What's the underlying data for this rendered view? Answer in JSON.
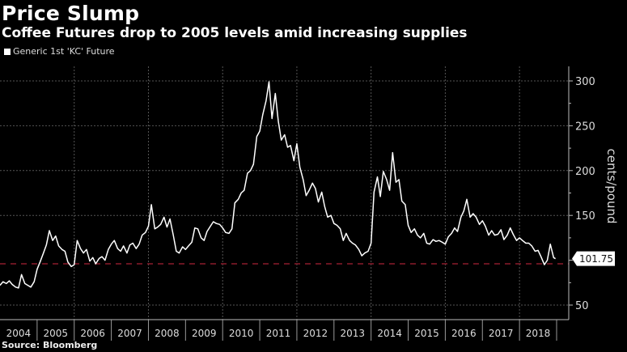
{
  "header": {
    "title": "Price Slump",
    "subtitle": "Coffee Futures drop to 2005 levels amid increasing supplies"
  },
  "legend": {
    "label": "Generic 1st 'KC' Future"
  },
  "footer": {
    "source": "Source: Bloomberg"
  },
  "colors": {
    "background": "#000000",
    "line": "#ffffff",
    "reference": "#8b1a2a",
    "grid": "#555555"
  },
  "chart_data": {
    "type": "line",
    "title": "Price Slump",
    "subtitle": "Coffee Futures drop to 2005 levels amid increasing supplies",
    "ylabel": "cents/pound",
    "xlabel": "",
    "ylim": [
      40,
      320
    ],
    "xlim": [
      2004.0,
      2019.0
    ],
    "yticks": [
      50,
      150,
      200,
      250,
      300
    ],
    "ytick_labels": [
      "50",
      "150",
      "200",
      "250",
      "300"
    ],
    "xtick_labels": [
      "2004",
      "2005",
      "2006",
      "2007",
      "2008",
      "2009",
      "2010",
      "2011",
      "2012",
      "2013",
      "2014",
      "2015",
      "2016",
      "2017",
      "2018"
    ],
    "grid": true,
    "legend_position": "top-left",
    "last_value": 101.75,
    "last_value_label": "101.75",
    "reference_line": {
      "value": 96,
      "style": "dashed"
    },
    "series": [
      {
        "name": "Generic 1st 'KC' Future",
        "x": [
          2004.0,
          2004.08,
          2004.17,
          2004.25,
          2004.33,
          2004.42,
          2004.5,
          2004.58,
          2004.67,
          2004.75,
          2004.83,
          2004.92,
          2005.0,
          2005.08,
          2005.17,
          2005.25,
          2005.33,
          2005.42,
          2005.5,
          2005.58,
          2005.67,
          2005.75,
          2005.83,
          2005.92,
          2006.0,
          2006.08,
          2006.17,
          2006.25,
          2006.33,
          2006.42,
          2006.5,
          2006.58,
          2006.67,
          2006.75,
          2006.83,
          2006.92,
          2007.0,
          2007.08,
          2007.17,
          2007.25,
          2007.33,
          2007.42,
          2007.5,
          2007.58,
          2007.67,
          2007.75,
          2007.83,
          2007.92,
          2008.0,
          2008.08,
          2008.17,
          2008.25,
          2008.33,
          2008.42,
          2008.5,
          2008.58,
          2008.67,
          2008.75,
          2008.83,
          2008.92,
          2009.0,
          2009.08,
          2009.17,
          2009.25,
          2009.33,
          2009.42,
          2009.5,
          2009.58,
          2009.67,
          2009.75,
          2009.83,
          2009.92,
          2010.0,
          2010.08,
          2010.17,
          2010.25,
          2010.33,
          2010.42,
          2010.5,
          2010.58,
          2010.67,
          2010.75,
          2010.83,
          2010.92,
          2011.0,
          2011.08,
          2011.17,
          2011.25,
          2011.33,
          2011.42,
          2011.5,
          2011.58,
          2011.67,
          2011.75,
          2011.83,
          2011.92,
          2012.0,
          2012.08,
          2012.17,
          2012.25,
          2012.33,
          2012.42,
          2012.5,
          2012.58,
          2012.67,
          2012.75,
          2012.83,
          2012.92,
          2013.0,
          2013.08,
          2013.17,
          2013.25,
          2013.33,
          2013.42,
          2013.5,
          2013.58,
          2013.67,
          2013.75,
          2013.83,
          2013.92,
          2014.0,
          2014.08,
          2014.17,
          2014.25,
          2014.33,
          2014.42,
          2014.5,
          2014.58,
          2014.67,
          2014.75,
          2014.83,
          2014.92,
          2015.0,
          2015.08,
          2015.17,
          2015.25,
          2015.33,
          2015.42,
          2015.5,
          2015.58,
          2015.67,
          2015.75,
          2015.83,
          2015.92,
          2016.0,
          2016.08,
          2016.17,
          2016.25,
          2016.33,
          2016.42,
          2016.5,
          2016.58,
          2016.67,
          2016.75,
          2016.83,
          2016.92,
          2017.0,
          2017.08,
          2017.17,
          2017.25,
          2017.33,
          2017.42,
          2017.5,
          2017.58,
          2017.67,
          2017.75,
          2017.83,
          2017.92,
          2018.0,
          2018.08,
          2018.17,
          2018.25,
          2018.33,
          2018.42,
          2018.5,
          2018.58,
          2018.67,
          2018.75,
          2018.83,
          2018.92
        ],
        "values": [
          72,
          76,
          74,
          77,
          73,
          70,
          69,
          84,
          74,
          72,
          70,
          76,
          90,
          98,
          108,
          117,
          133,
          122,
          127,
          116,
          112,
          110,
          98,
          93,
          95,
          122,
          113,
          108,
          112,
          99,
          103,
          96,
          102,
          104,
          100,
          112,
          118,
          122,
          113,
          110,
          116,
          108,
          117,
          119,
          113,
          118,
          128,
          131,
          138,
          162,
          135,
          137,
          140,
          148,
          137,
          146,
          128,
          110,
          108,
          115,
          112,
          116,
          120,
          136,
          135,
          125,
          122,
          132,
          138,
          143,
          141,
          140,
          136,
          131,
          130,
          135,
          164,
          168,
          175,
          178,
          197,
          200,
          207,
          238,
          244,
          262,
          278,
          299,
          258,
          286,
          255,
          234,
          240,
          226,
          228,
          211,
          230,
          204,
          190,
          172,
          178,
          186,
          180,
          165,
          176,
          160,
          148,
          150,
          141,
          139,
          135,
          122,
          130,
          122,
          119,
          117,
          112,
          105,
          108,
          110,
          119,
          176,
          193,
          171,
          199,
          190,
          178,
          220,
          187,
          190,
          166,
          162,
          139,
          131,
          135,
          128,
          125,
          130,
          119,
          118,
          123,
          121,
          122,
          120,
          118,
          126,
          130,
          136,
          132,
          148,
          155,
          168,
          148,
          152,
          148,
          140,
          144,
          138,
          128,
          133,
          128,
          129,
          134,
          123,
          128,
          136,
          129,
          122,
          125,
          122,
          119,
          119,
          116,
          110,
          111,
          104,
          95,
          100,
          118,
          103
        ]
      }
    ]
  }
}
